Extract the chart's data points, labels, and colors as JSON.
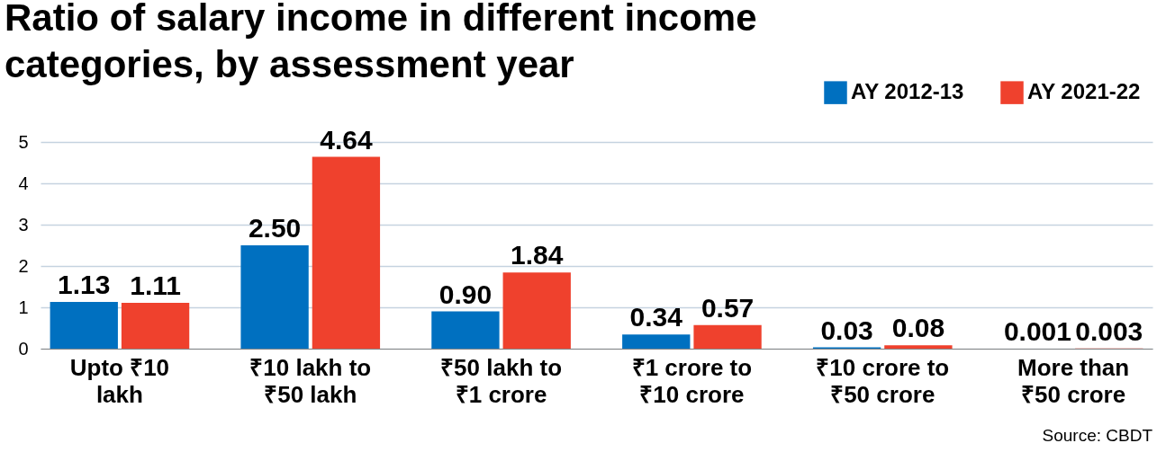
{
  "chart_data": {
    "type": "bar",
    "title": "Ratio of salary income in different income categories, by assessment year",
    "categories": [
      "Upto ₹10 lakh",
      "₹10 lakh to ₹50 lakh",
      "₹50 lakh to ₹1 crore",
      "₹1 crore to ₹10 crore",
      "₹10 crore to ₹50 crore",
      "More than ₹50 crore"
    ],
    "series": [
      {
        "name": "AY 2012-13",
        "color": "#0070c0",
        "values": [
          1.13,
          2.5,
          0.9,
          0.34,
          0.03,
          0.001
        ],
        "value_labels": [
          "1.13",
          "2.50",
          "0.90",
          "0.34",
          "0.03",
          "0.001"
        ]
      },
      {
        "name": "AY 2021-22",
        "color": "#ef412d",
        "values": [
          1.11,
          4.64,
          1.84,
          0.57,
          0.08,
          0.003
        ],
        "value_labels": [
          "1.11",
          "4.64",
          "1.84",
          "0.57",
          "0.08",
          "0.003"
        ]
      }
    ],
    "ylim": [
      0,
      5
    ],
    "yticks": [
      0,
      1,
      2,
      3,
      4,
      5
    ],
    "grid": "y",
    "legend": "top right",
    "annotations": [
      "Source: CBDT"
    ]
  }
}
